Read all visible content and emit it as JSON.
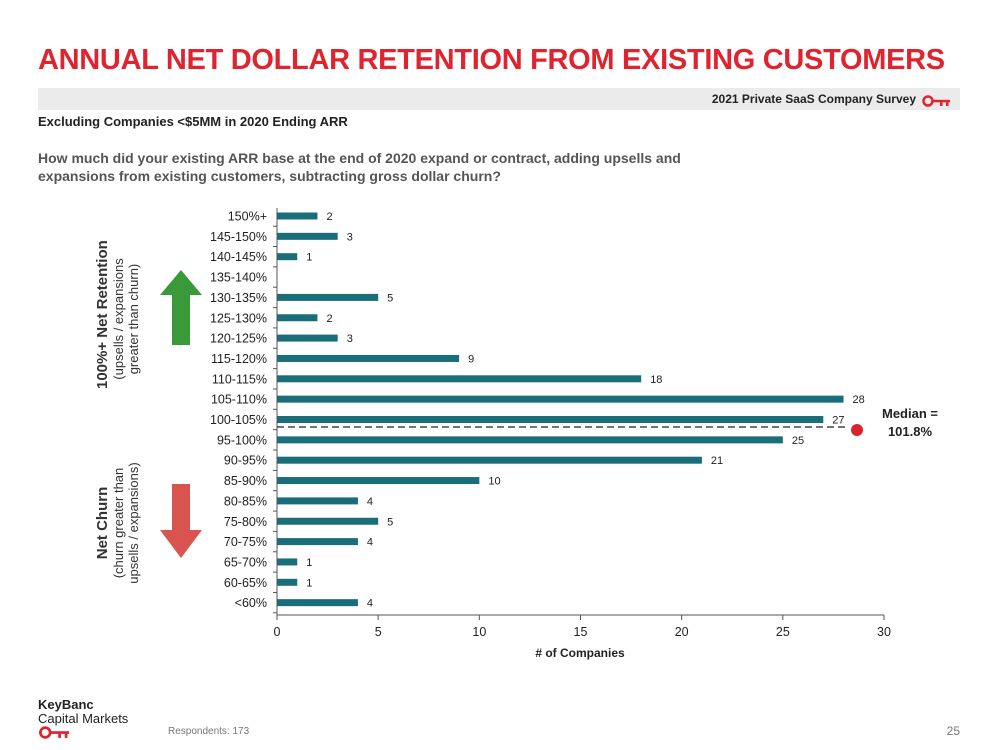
{
  "title": "ANNUAL NET DOLLAR RETENTION FROM EXISTING CUSTOMERS",
  "survey_label": "2021 Private SaaS Company Survey",
  "subtitle": "Excluding Companies <$5MM in 2020 Ending ARR",
  "question": "How much did your existing ARR base at the end of 2020 expand or contract, adding upsells and expansions from existing customers, subtracting gross dollar churn?",
  "side_labels": {
    "top_main": "100%+ Net Retention",
    "top_sub1": "(upsells / expansions",
    "top_sub2": "greater than churn)",
    "bottom_main": "Net Churn",
    "bottom_sub1": "(churn greater than",
    "bottom_sub2": "upsells / expansions)"
  },
  "median": {
    "line1": "Median =",
    "line2": "101.8%"
  },
  "colors": {
    "accent": "#e0242f",
    "bar": "#1a6e7a",
    "up_arrow": "#3a9a3a",
    "down_arrow": "#d9534f"
  },
  "footer": {
    "logo_name": "KeyBanc",
    "logo_sub": "Capital Markets",
    "respondents": "Respondents: 173",
    "page": "25"
  },
  "chart_data": {
    "type": "bar",
    "orientation": "horizontal",
    "categories": [
      "150%+",
      "145-150%",
      "140-145%",
      "135-140%",
      "130-135%",
      "125-130%",
      "120-125%",
      "115-120%",
      "110-115%",
      "105-110%",
      "100-105%",
      "95-100%",
      "90-95%",
      "85-90%",
      "80-85%",
      "75-80%",
      "70-75%",
      "65-70%",
      "60-65%",
      "<60%"
    ],
    "values": [
      2,
      3,
      1,
      0,
      5,
      2,
      3,
      9,
      18,
      28,
      27,
      25,
      21,
      10,
      4,
      5,
      4,
      1,
      1,
      4
    ],
    "xlabel": "# of Companies",
    "xlim": [
      0,
      30
    ],
    "xticks": [
      0,
      5,
      10,
      15,
      20,
      25,
      30
    ],
    "median_value": "101.8%",
    "grid": false
  }
}
